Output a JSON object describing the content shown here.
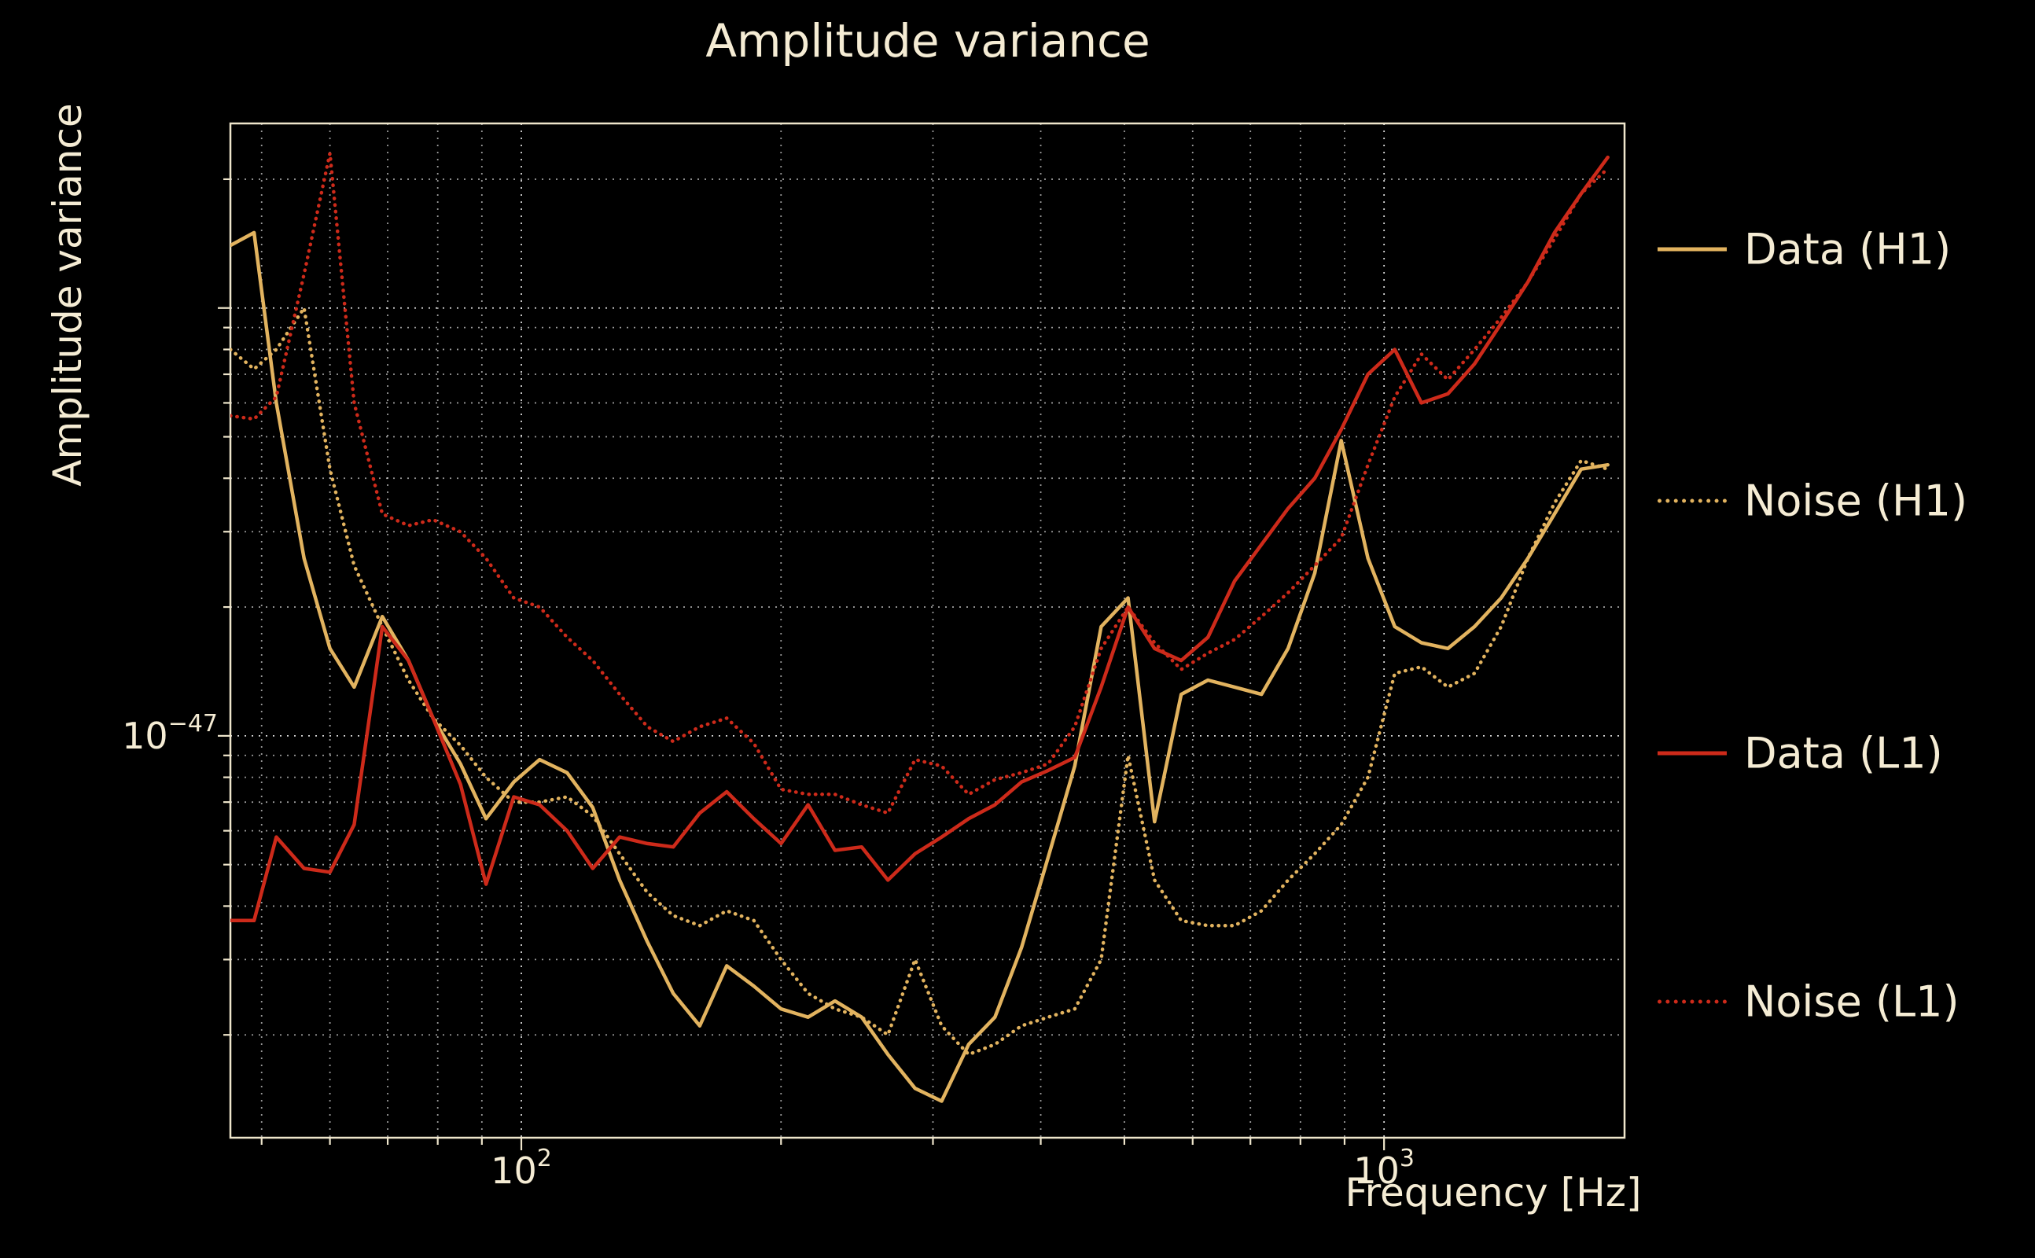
{
  "colors": {
    "background": "#000000",
    "text": "#f5ecd4",
    "frame": "#efe6cc",
    "grid": "#ffffff",
    "h1": "#e2b35f",
    "l1": "#cd2a1a"
  },
  "legend": {
    "position": "right-outside",
    "entries": [
      "Data (H1)",
      "Noise (H1)",
      "Data (L1)",
      "Noise (L1)"
    ]
  },
  "chart_data": {
    "type": "line",
    "title": "Amplitude variance",
    "xlabel": "Frequency [Hz]",
    "ylabel": "Amplitude variance",
    "xscale": "log",
    "yscale": "log",
    "xlim": [
      46,
      1900
    ],
    "ylim": [
      1.15e-48,
      2.7e-46
    ],
    "grid": "dotted white major+minor on black",
    "x_ticks": [
      {
        "value": 100,
        "base": "10",
        "exp": "2"
      },
      {
        "value": 1000,
        "base": "10",
        "exp": "3"
      }
    ],
    "y_ticks": [
      {
        "value": 1e-47,
        "base": "10",
        "exp": "−47"
      }
    ],
    "x": [
      46,
      49,
      52,
      56,
      60,
      64,
      69,
      74,
      79,
      85,
      91,
      98,
      105,
      113,
      121,
      130,
      140,
      150,
      161,
      173,
      186,
      200,
      215,
      231,
      248,
      266,
      286,
      307,
      330,
      354,
      380,
      408,
      438,
      470,
      505,
      542,
      582,
      625,
      671,
      721,
      774,
      831,
      892,
      958,
      1029,
      1105,
      1186,
      1273,
      1367,
      1468,
      1576,
      1692,
      1817
    ],
    "series": [
      {
        "name": "Data (H1)",
        "color": "#e2b35f",
        "style": "solid",
        "values": [
          1.4e-46,
          1.5e-46,
          6e-47,
          2.6e-47,
          1.6e-47,
          1.3e-47,
          1.9e-47,
          1.5e-47,
          1.1e-47,
          8.6e-48,
          6.4e-48,
          7.8e-48,
          8.8e-48,
          8.2e-48,
          6.8e-48,
          4.6e-48,
          3.3e-48,
          2.5e-48,
          2.1e-48,
          2.9e-48,
          2.6e-48,
          2.3e-48,
          2.2e-48,
          2.4e-48,
          2.2e-48,
          1.8e-48,
          1.5e-48,
          1.4e-48,
          1.9e-48,
          2.2e-48,
          3.2e-48,
          5.2e-48,
          8.5e-48,
          1.8e-47,
          2.1e-47,
          6.3e-48,
          1.25e-47,
          1.35e-47,
          1.3e-47,
          1.25e-47,
          1.6e-47,
          2.4e-47,
          4.9e-47,
          2.6e-47,
          1.8e-47,
          1.65e-47,
          1.6e-47,
          1.8e-47,
          2.1e-47,
          2.6e-47,
          3.3e-47,
          4.2e-47,
          4.3e-47
        ]
      },
      {
        "name": "Noise (H1)",
        "color": "#e2b35f",
        "style": "dotted",
        "values": [
          8e-47,
          7.2e-47,
          8e-47,
          1e-46,
          4.2e-47,
          2.5e-47,
          1.8e-47,
          1.35e-47,
          1.1e-47,
          9.5e-48,
          8e-48,
          7e-48,
          7e-48,
          7.2e-48,
          6.5e-48,
          5.3e-48,
          4.3e-48,
          3.8e-48,
          3.6e-48,
          3.9e-48,
          3.7e-48,
          3e-48,
          2.5e-48,
          2.3e-48,
          2.2e-48,
          2e-48,
          3e-48,
          2.1e-48,
          1.8e-48,
          1.9e-48,
          2.1e-48,
          2.2e-48,
          2.3e-48,
          3e-48,
          9e-48,
          4.6e-48,
          3.7e-48,
          3.6e-48,
          3.6e-48,
          3.9e-48,
          4.6e-48,
          5.3e-48,
          6.2e-48,
          8e-48,
          1.4e-47,
          1.45e-47,
          1.3e-47,
          1.4e-47,
          1.8e-47,
          2.6e-47,
          3.5e-47,
          4.4e-47,
          4.2e-47
        ]
      },
      {
        "name": "Data (L1)",
        "color": "#cd2a1a",
        "style": "solid",
        "values": [
          3.7e-48,
          3.7e-48,
          5.8e-48,
          4.9e-48,
          4.8e-48,
          6.2e-48,
          1.8e-47,
          1.5e-47,
          1.1e-47,
          7.7e-48,
          4.5e-48,
          7.2e-48,
          6.9e-48,
          6e-48,
          4.9e-48,
          5.8e-48,
          5.6e-48,
          5.5e-48,
          6.6e-48,
          7.4e-48,
          6.4e-48,
          5.6e-48,
          6.9e-48,
          5.4e-48,
          5.5e-48,
          4.6e-48,
          5.3e-48,
          5.8e-48,
          6.4e-48,
          6.9e-48,
          7.8e-48,
          8.3e-48,
          8.9e-48,
          1.3e-47,
          2e-47,
          1.6e-47,
          1.5e-47,
          1.7e-47,
          2.3e-47,
          2.8e-47,
          3.4e-47,
          4e-47,
          5.2e-47,
          7e-47,
          8e-47,
          6e-47,
          6.3e-47,
          7.4e-47,
          9.2e-47,
          1.15e-46,
          1.5e-46,
          1.85e-46,
          2.25e-46
        ]
      },
      {
        "name": "Noise (L1)",
        "color": "#cd2a1a",
        "style": "dotted",
        "values": [
          5.6e-47,
          5.5e-47,
          6.2e-47,
          1.2e-46,
          2.3e-46,
          6e-47,
          3.3e-47,
          3.1e-47,
          3.2e-47,
          3e-47,
          2.6e-47,
          2.1e-47,
          2e-47,
          1.7e-47,
          1.5e-47,
          1.25e-47,
          1.05e-47,
          9.7e-48,
          1.05e-47,
          1.1e-47,
          9.6e-48,
          7.5e-48,
          7.3e-48,
          7.3e-48,
          6.9e-48,
          6.6e-48,
          8.8e-48,
          8.5e-48,
          7.3e-48,
          7.9e-48,
          8.2e-48,
          8.6e-48,
          1.05e-47,
          1.6e-47,
          2e-47,
          1.65e-47,
          1.43e-47,
          1.56e-47,
          1.68e-47,
          1.9e-47,
          2.16e-47,
          2.5e-47,
          2.9e-47,
          4.3e-47,
          6.2e-47,
          7.8e-47,
          6.8e-47,
          8e-47,
          9.5e-47,
          1.15e-46,
          1.45e-46,
          1.85e-46,
          2.12e-46
        ]
      }
    ]
  }
}
